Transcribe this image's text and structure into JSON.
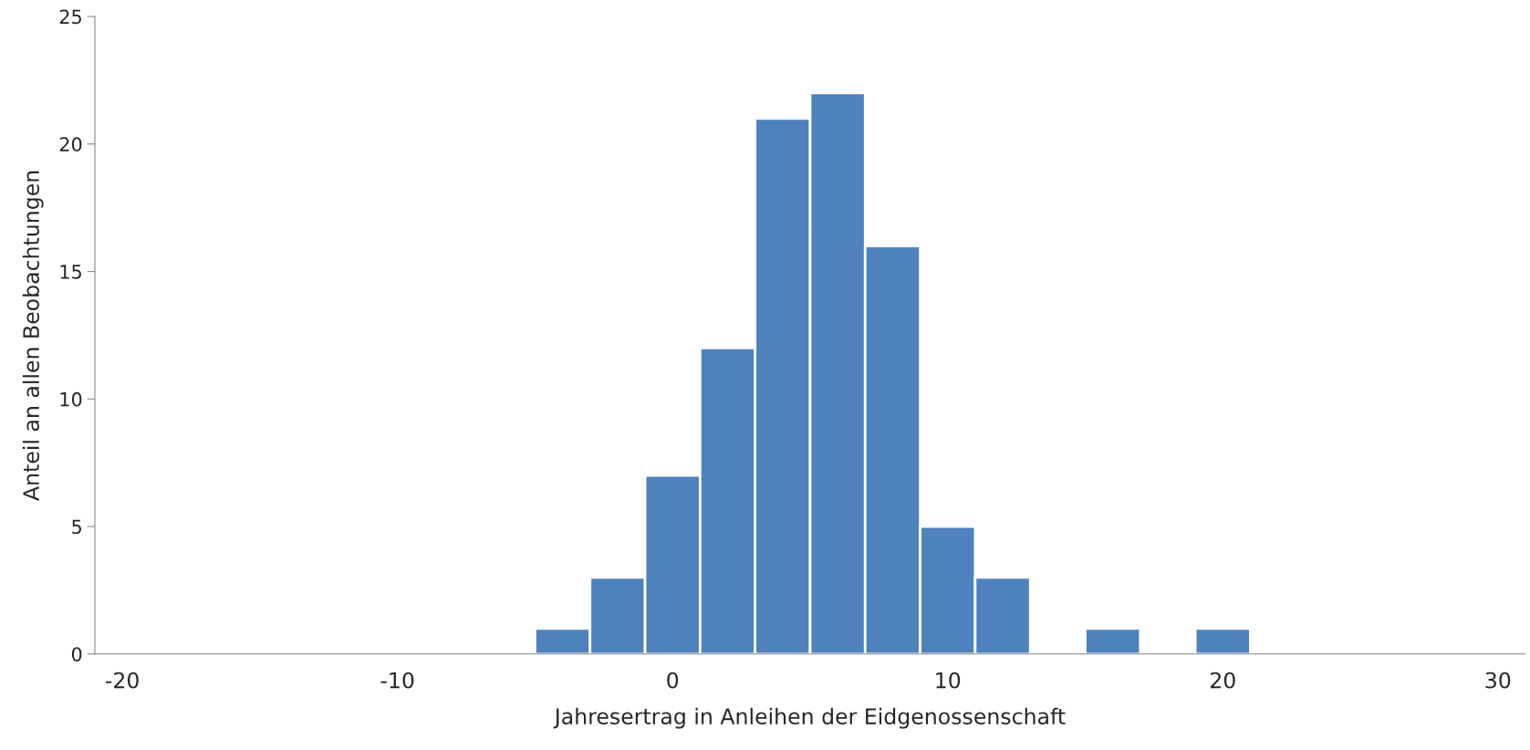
{
  "chart_data": {
    "type": "histogram",
    "xlabel": "Jahresertrag in Anleihen der Eidgenossenschaft",
    "ylabel": "Anteil an allen Beobachtungen",
    "bins": [
      -5,
      -3,
      -1,
      1,
      3,
      5,
      7,
      9,
      11,
      13,
      15,
      17,
      19,
      21
    ],
    "values": [
      1,
      3,
      7,
      12,
      21,
      22,
      16,
      5,
      3,
      0,
      1,
      0,
      1
    ],
    "color": "#4f81bd",
    "xlim": [
      -21,
      31
    ],
    "xticks": [
      -20,
      -10,
      0,
      10,
      20,
      30
    ],
    "ylim": [
      0,
      25
    ],
    "yticks": [
      0,
      5,
      10,
      15,
      20,
      25
    ],
    "grid": false
  }
}
